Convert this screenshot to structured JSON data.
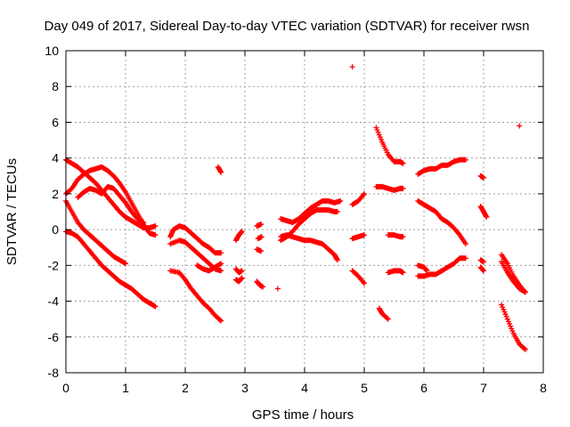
{
  "chart_data": {
    "type": "scatter",
    "title": "Day 049 of 2017, Sidereal Day-to-day VTEC variation (SDTVAR) for receiver rwsn",
    "xlabel": "GPS time / hours",
    "ylabel": "SDTVAR / TECUs",
    "xlim": [
      0,
      8
    ],
    "ylim": [
      -8,
      10
    ],
    "xticks": [
      "0",
      "1",
      "2",
      "3",
      "4",
      "5",
      "6",
      "7",
      "8"
    ],
    "yticks": [
      "-8",
      "-6",
      "-4",
      "-2",
      "0",
      "2",
      "4",
      "6",
      "8",
      "10"
    ],
    "grid": true,
    "marker": "plus",
    "color": "#ff0000",
    "tracks": [
      [
        [
          0.0,
          3.9
        ],
        [
          0.1,
          3.7
        ],
        [
          0.2,
          3.5
        ],
        [
          0.3,
          3.2
        ],
        [
          0.4,
          2.9
        ],
        [
          0.5,
          2.6
        ],
        [
          0.6,
          2.2
        ],
        [
          0.7,
          1.8
        ],
        [
          0.8,
          1.4
        ],
        [
          0.9,
          1.0
        ],
        [
          1.0,
          0.7
        ],
        [
          1.1,
          0.5
        ],
        [
          1.2,
          0.3
        ],
        [
          1.3,
          0.1
        ],
        [
          1.4,
          0.1
        ],
        [
          1.5,
          0.2
        ]
      ],
      [
        [
          0.0,
          2.0
        ],
        [
          0.1,
          2.3
        ],
        [
          0.2,
          2.8
        ],
        [
          0.3,
          3.1
        ],
        [
          0.4,
          3.3
        ],
        [
          0.5,
          3.4
        ],
        [
          0.6,
          3.5
        ],
        [
          0.7,
          3.3
        ],
        [
          0.8,
          3.0
        ],
        [
          0.9,
          2.6
        ],
        [
          1.0,
          2.1
        ],
        [
          1.1,
          1.5
        ],
        [
          1.2,
          0.9
        ],
        [
          1.3,
          0.3
        ],
        [
          1.4,
          -0.2
        ],
        [
          1.5,
          -0.3
        ]
      ],
      [
        [
          0.0,
          1.6
        ],
        [
          0.1,
          1.0
        ],
        [
          0.2,
          0.4
        ],
        [
          0.3,
          0.0
        ],
        [
          0.4,
          -0.3
        ],
        [
          0.5,
          -0.6
        ],
        [
          0.6,
          -0.9
        ],
        [
          0.7,
          -1.2
        ],
        [
          0.8,
          -1.5
        ],
        [
          0.9,
          -1.7
        ],
        [
          1.0,
          -1.9
        ]
      ],
      [
        [
          0.0,
          -0.1
        ],
        [
          0.1,
          -0.2
        ],
        [
          0.2,
          -0.4
        ],
        [
          0.3,
          -0.8
        ],
        [
          0.4,
          -1.2
        ],
        [
          0.5,
          -1.6
        ],
        [
          0.6,
          -2.0
        ],
        [
          0.7,
          -2.3
        ],
        [
          0.8,
          -2.6
        ],
        [
          0.9,
          -2.9
        ],
        [
          1.0,
          -3.1
        ],
        [
          1.1,
          -3.3
        ],
        [
          1.2,
          -3.6
        ],
        [
          1.3,
          -3.9
        ],
        [
          1.4,
          -4.1
        ],
        [
          1.5,
          -4.3
        ]
      ],
      [
        [
          0.2,
          1.8
        ],
        [
          0.3,
          2.1
        ],
        [
          0.4,
          2.3
        ],
        [
          0.5,
          2.2
        ],
        [
          0.6,
          2.0
        ],
        [
          0.7,
          2.4
        ],
        [
          0.8,
          2.3
        ],
        [
          0.9,
          1.9
        ],
        [
          1.0,
          1.5
        ],
        [
          1.1,
          1.0
        ],
        [
          1.2,
          0.6
        ],
        [
          1.3,
          0.4
        ]
      ],
      [
        [
          1.75,
          -0.4
        ],
        [
          1.8,
          0.0
        ],
        [
          1.9,
          0.2
        ],
        [
          2.0,
          0.1
        ],
        [
          2.1,
          -0.2
        ],
        [
          2.2,
          -0.5
        ],
        [
          2.3,
          -0.8
        ],
        [
          2.4,
          -1.0
        ],
        [
          2.5,
          -1.3
        ],
        [
          2.6,
          -1.3
        ]
      ],
      [
        [
          1.75,
          -2.3
        ],
        [
          1.9,
          -2.4
        ],
        [
          2.0,
          -2.8
        ],
        [
          2.1,
          -3.3
        ],
        [
          2.2,
          -3.7
        ],
        [
          2.3,
          -4.1
        ],
        [
          2.4,
          -4.4
        ],
        [
          2.5,
          -4.8
        ],
        [
          2.6,
          -5.1
        ]
      ],
      [
        [
          1.75,
          -0.8
        ],
        [
          1.9,
          -0.6
        ],
        [
          2.0,
          -0.7
        ],
        [
          2.1,
          -1.0
        ],
        [
          2.2,
          -1.3
        ],
        [
          2.3,
          -1.6
        ],
        [
          2.4,
          -1.9
        ],
        [
          2.5,
          -2.2
        ],
        [
          2.6,
          -2.3
        ]
      ],
      [
        [
          2.2,
          -2.0
        ],
        [
          2.3,
          -2.2
        ],
        [
          2.4,
          -2.3
        ],
        [
          2.5,
          -2.1
        ],
        [
          2.6,
          -1.9
        ]
      ],
      [
        [
          2.55,
          3.5
        ],
        [
          2.6,
          3.2
        ]
      ],
      [
        [
          2.85,
          -0.6
        ],
        [
          2.9,
          -0.3
        ],
        [
          2.95,
          -0.1
        ]
      ],
      [
        [
          2.85,
          -2.2
        ],
        [
          2.9,
          -2.4
        ],
        [
          2.95,
          -2.3
        ]
      ],
      [
        [
          2.85,
          -2.8
        ],
        [
          2.9,
          -2.9
        ],
        [
          2.95,
          -2.7
        ]
      ],
      [
        [
          3.2,
          0.2
        ],
        [
          3.27,
          0.3
        ]
      ],
      [
        [
          3.22,
          -0.5
        ],
        [
          3.28,
          -0.4
        ]
      ],
      [
        [
          3.2,
          -1.1
        ],
        [
          3.27,
          -1.2
        ]
      ],
      [
        [
          3.2,
          -2.9
        ],
        [
          3.25,
          -3.1
        ],
        [
          3.3,
          -3.2
        ]
      ],
      [
        [
          3.55,
          -3.3
        ]
      ],
      [
        [
          3.6,
          0.6
        ],
        [
          3.7,
          0.5
        ],
        [
          3.8,
          0.4
        ],
        [
          3.9,
          0.6
        ],
        [
          4.0,
          0.9
        ],
        [
          4.1,
          1.2
        ],
        [
          4.2,
          1.4
        ],
        [
          4.3,
          1.6
        ],
        [
          4.4,
          1.6
        ],
        [
          4.5,
          1.5
        ],
        [
          4.6,
          1.6
        ]
      ],
      [
        [
          3.6,
          -0.6
        ],
        [
          3.7,
          -0.4
        ],
        [
          3.8,
          -0.1
        ],
        [
          3.9,
          0.3
        ],
        [
          4.0,
          0.6
        ],
        [
          4.1,
          0.9
        ],
        [
          4.2,
          1.1
        ],
        [
          4.3,
          1.1
        ],
        [
          4.4,
          1.1
        ],
        [
          4.5,
          1.0
        ],
        [
          4.55,
          1.0
        ]
      ],
      [
        [
          3.6,
          -0.4
        ],
        [
          3.7,
          -0.3
        ],
        [
          3.8,
          -0.4
        ],
        [
          3.9,
          -0.5
        ],
        [
          4.0,
          -0.6
        ],
        [
          4.1,
          -0.6
        ],
        [
          4.2,
          -0.7
        ],
        [
          4.3,
          -0.8
        ],
        [
          4.4,
          -1.1
        ],
        [
          4.5,
          -1.4
        ],
        [
          4.55,
          -1.7
        ]
      ],
      [
        [
          4.8,
          9.1
        ]
      ],
      [
        [
          4.8,
          1.4
        ],
        [
          4.9,
          1.6
        ],
        [
          5.0,
          2.0
        ]
      ],
      [
        [
          4.8,
          -0.5
        ],
        [
          4.9,
          -0.4
        ],
        [
          5.0,
          -0.3
        ]
      ],
      [
        [
          4.8,
          -2.3
        ],
        [
          4.9,
          -2.6
        ],
        [
          5.0,
          -3.0
        ]
      ],
      [
        [
          5.2,
          5.7
        ],
        [
          5.3,
          4.9
        ],
        [
          5.4,
          4.2
        ],
        [
          5.5,
          3.8
        ],
        [
          5.6,
          3.8
        ],
        [
          5.65,
          3.7
        ]
      ],
      [
        [
          5.2,
          2.4
        ],
        [
          5.3,
          2.4
        ],
        [
          5.4,
          2.3
        ],
        [
          5.5,
          2.2
        ],
        [
          5.6,
          2.3
        ],
        [
          5.65,
          2.3
        ]
      ],
      [
        [
          5.25,
          -4.4
        ],
        [
          5.3,
          -4.7
        ],
        [
          5.4,
          -5.0
        ]
      ],
      [
        [
          5.4,
          -0.3
        ],
        [
          5.5,
          -0.3
        ],
        [
          5.6,
          -0.4
        ],
        [
          5.65,
          -0.4
        ]
      ],
      [
        [
          5.4,
          -2.4
        ],
        [
          5.5,
          -2.3
        ],
        [
          5.6,
          -2.3
        ],
        [
          5.65,
          -2.4
        ]
      ],
      [
        [
          5.9,
          3.1
        ],
        [
          6.0,
          3.3
        ],
        [
          6.1,
          3.4
        ],
        [
          6.2,
          3.4
        ],
        [
          6.3,
          3.6
        ],
        [
          6.4,
          3.6
        ],
        [
          6.5,
          3.8
        ],
        [
          6.6,
          3.9
        ],
        [
          6.7,
          3.9
        ]
      ],
      [
        [
          5.9,
          1.6
        ],
        [
          6.0,
          1.4
        ],
        [
          6.1,
          1.2
        ],
        [
          6.2,
          1.0
        ],
        [
          6.3,
          0.6
        ],
        [
          6.4,
          0.4
        ],
        [
          6.5,
          0.1
        ],
        [
          6.6,
          -0.3
        ],
        [
          6.7,
          -0.8
        ]
      ],
      [
        [
          5.9,
          -2.0
        ],
        [
          6.0,
          -2.1
        ],
        [
          6.05,
          -2.3
        ]
      ],
      [
        [
          5.9,
          -2.6
        ],
        [
          6.0,
          -2.6
        ],
        [
          6.1,
          -2.5
        ],
        [
          6.2,
          -2.5
        ],
        [
          6.3,
          -2.3
        ],
        [
          6.4,
          -2.1
        ],
        [
          6.5,
          -1.9
        ],
        [
          6.6,
          -1.6
        ],
        [
          6.7,
          -1.6
        ]
      ],
      [
        [
          6.95,
          3.0
        ],
        [
          7.0,
          2.9
        ]
      ],
      [
        [
          6.95,
          1.3
        ],
        [
          7.0,
          1.0
        ],
        [
          7.05,
          0.7
        ]
      ],
      [
        [
          6.95,
          -1.7
        ],
        [
          7.0,
          -1.8
        ]
      ],
      [
        [
          6.95,
          -2.1
        ],
        [
          7.0,
          -2.3
        ]
      ],
      [
        [
          7.3,
          -1.4
        ],
        [
          7.4,
          -1.9
        ],
        [
          7.5,
          -2.6
        ],
        [
          7.6,
          -3.1
        ],
        [
          7.7,
          -3.5
        ]
      ],
      [
        [
          7.3,
          -1.8
        ],
        [
          7.4,
          -2.4
        ],
        [
          7.5,
          -2.9
        ],
        [
          7.6,
          -3.3
        ],
        [
          7.7,
          -3.5
        ]
      ],
      [
        [
          7.3,
          -4.2
        ],
        [
          7.4,
          -5.0
        ],
        [
          7.5,
          -5.8
        ],
        [
          7.6,
          -6.4
        ],
        [
          7.7,
          -6.7
        ]
      ],
      [
        [
          7.6,
          5.8
        ]
      ]
    ]
  }
}
